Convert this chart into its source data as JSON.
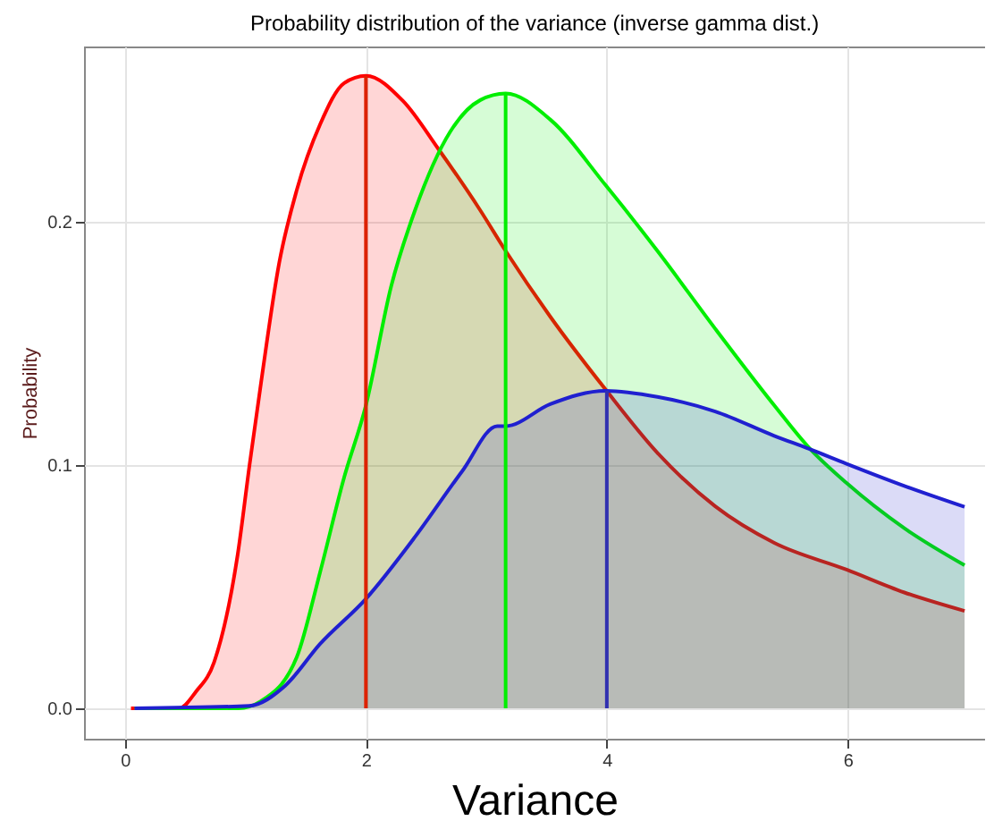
{
  "chart_data": {
    "type": "area",
    "title": "Probability distribution of the variance (inverse gamma dist.)",
    "xlabel": "Variance",
    "ylabel": "Probability",
    "xlim": [
      -0.34,
      7.14
    ],
    "ylim": [
      -0.0125,
      0.272
    ],
    "xticks": [
      0,
      2,
      4,
      6
    ],
    "yticks": [
      {
        "value": 0,
        "label": "0.0"
      },
      0.1,
      0.2
    ],
    "grid": true,
    "series": [
      {
        "color": "#ff0000",
        "x": [
          0.05,
          0.45,
          0.59,
          0.74,
          0.935,
          1.034,
          1.13,
          1.28,
          1.426,
          1.62,
          1.82,
          2.0,
          2.31,
          2.6,
          2.945,
          3.16,
          3.53,
          3.99,
          4.42,
          4.9,
          5.39,
          5.99,
          6.47,
          6.97
        ],
        "values": [
          0,
          0,
          0.0069,
          0.019,
          0.063,
          0.1,
          0.134,
          0.183,
          0.213,
          0.24,
          0.257,
          0.26,
          0.2495,
          0.23,
          0.205,
          0.188,
          0.161,
          0.131,
          0.105,
          0.083,
          0.068,
          0.057,
          0.0476,
          0.04
        ]
      },
      {
        "color": "#00ee00",
        "x": [
          0.08,
          0.94,
          1.13,
          1.426,
          1.62,
          1.82,
          2.0,
          2.21,
          2.41,
          2.7,
          2.95,
          3.16,
          3.53,
          3.99,
          4.42,
          4.9,
          5.39,
          5.68,
          5.99,
          6.47,
          6.97
        ],
        "values": [
          0,
          0,
          0.003,
          0.021,
          0.056,
          0.095,
          0.1245,
          0.1735,
          0.205,
          0.237,
          0.25,
          0.2527,
          0.242,
          0.215,
          0.188,
          0.156,
          0.1245,
          0.107,
          0.0926,
          0.074,
          0.0588
        ]
      },
      {
        "color": "#2020d0",
        "x": [
          0.08,
          1.03,
          1.33,
          1.62,
          2.0,
          2.41,
          2.8,
          3.09,
          3.16,
          3.53,
          3.99,
          4.42,
          4.9,
          5.39,
          5.68,
          5.99,
          6.47,
          6.97
        ],
        "values": [
          0,
          0.001,
          0.0093,
          0.0265,
          0.045,
          0.0706,
          0.0975,
          0.116,
          0.116,
          0.125,
          0.1305,
          0.128,
          0.122,
          0.112,
          0.1066,
          0.1005,
          0.0914,
          0.0828
        ]
      },
      {
        "type": "line",
        "color": "#dd2200",
        "x": [
          2,
          2
        ],
        "values": [
          0,
          0.26
        ]
      },
      {
        "type": "line",
        "color": "#00ee00",
        "x": [
          3.16,
          3.16
        ],
        "values": [
          0,
          0.2527
        ]
      },
      {
        "type": "line",
        "color": "#3030b0",
        "x": [
          4,
          4
        ],
        "values": [
          0,
          0.1305
        ]
      }
    ]
  }
}
